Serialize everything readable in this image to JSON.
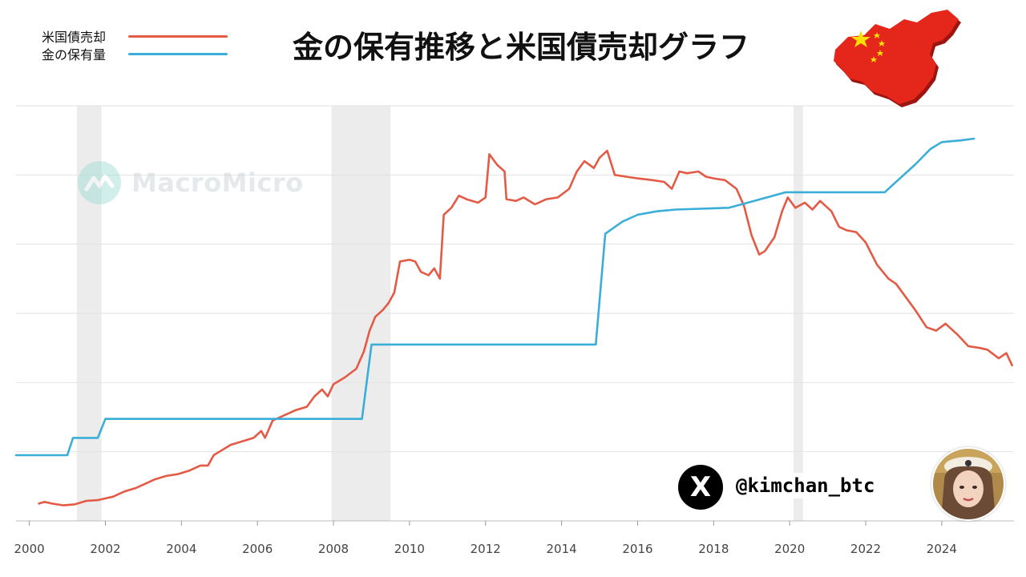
{
  "header": {
    "title": "金の保有推移と米国債売却グラフ",
    "legend": [
      {
        "label": "米国債売却",
        "color": "#e35a45"
      },
      {
        "label": "金の保有量",
        "color": "#3aaed8"
      }
    ]
  },
  "watermark": {
    "text": "MacroMicro",
    "icon": "macromicro-logo-icon"
  },
  "social": {
    "handle": "@kimchan_btc",
    "icon": "x-logo-icon"
  },
  "flag_map": {
    "icon": "china-flag-map-icon",
    "color": "#e5261b",
    "star_color": "#ffde00"
  },
  "chart_data": {
    "type": "line",
    "xlim": [
      1999.65,
      2025.9
    ],
    "ylim": [
      0,
      12
    ],
    "x_ticks": [
      2000,
      2002,
      2004,
      2006,
      2008,
      2010,
      2012,
      2014,
      2016,
      2018,
      2020,
      2022,
      2024
    ],
    "grid": true,
    "legend_position": "top-left",
    "recession_shading": [
      [
        2001.25,
        2001.9
      ],
      [
        2007.95,
        2009.5
      ],
      [
        2020.1,
        2020.35
      ]
    ],
    "series": [
      {
        "name": "米国債売却",
        "color": "#e35a45",
        "points": [
          [
            2000.25,
            0.5
          ],
          [
            2000.4,
            0.55
          ],
          [
            2000.6,
            0.5
          ],
          [
            2000.9,
            0.45
          ],
          [
            2001.2,
            0.48
          ],
          [
            2001.5,
            0.58
          ],
          [
            2001.8,
            0.6
          ],
          [
            2002.0,
            0.65
          ],
          [
            2002.2,
            0.7
          ],
          [
            2002.5,
            0.85
          ],
          [
            2002.8,
            0.95
          ],
          [
            2003.0,
            1.05
          ],
          [
            2003.3,
            1.2
          ],
          [
            2003.6,
            1.3
          ],
          [
            2003.9,
            1.35
          ],
          [
            2004.2,
            1.45
          ],
          [
            2004.5,
            1.6
          ],
          [
            2004.7,
            1.6
          ],
          [
            2004.85,
            1.9
          ],
          [
            2005.0,
            2.0
          ],
          [
            2005.3,
            2.2
          ],
          [
            2005.6,
            2.3
          ],
          [
            2005.9,
            2.4
          ],
          [
            2006.1,
            2.6
          ],
          [
            2006.2,
            2.4
          ],
          [
            2006.4,
            2.9
          ],
          [
            2006.6,
            3.0
          ],
          [
            2006.8,
            3.1
          ],
          [
            2007.0,
            3.2
          ],
          [
            2007.3,
            3.3
          ],
          [
            2007.5,
            3.6
          ],
          [
            2007.7,
            3.8
          ],
          [
            2007.85,
            3.6
          ],
          [
            2008.0,
            3.95
          ],
          [
            2008.3,
            4.15
          ],
          [
            2008.6,
            4.4
          ],
          [
            2008.8,
            4.9
          ],
          [
            2008.95,
            5.5
          ],
          [
            2009.1,
            5.9
          ],
          [
            2009.3,
            6.1
          ],
          [
            2009.45,
            6.3
          ],
          [
            2009.6,
            6.6
          ],
          [
            2009.75,
            7.5
          ],
          [
            2010.0,
            7.55
          ],
          [
            2010.15,
            7.5
          ],
          [
            2010.3,
            7.2
          ],
          [
            2010.5,
            7.1
          ],
          [
            2010.65,
            7.3
          ],
          [
            2010.8,
            7.0
          ],
          [
            2010.9,
            8.85
          ],
          [
            2011.1,
            9.05
          ],
          [
            2011.3,
            9.4
          ],
          [
            2011.5,
            9.3
          ],
          [
            2011.8,
            9.2
          ],
          [
            2012.0,
            9.35
          ],
          [
            2012.1,
            10.6
          ],
          [
            2012.3,
            10.3
          ],
          [
            2012.5,
            10.1
          ],
          [
            2012.55,
            9.3
          ],
          [
            2012.8,
            9.25
          ],
          [
            2013.0,
            9.35
          ],
          [
            2013.3,
            9.15
          ],
          [
            2013.6,
            9.3
          ],
          [
            2013.9,
            9.35
          ],
          [
            2014.2,
            9.6
          ],
          [
            2014.4,
            10.1
          ],
          [
            2014.6,
            10.4
          ],
          [
            2014.85,
            10.2
          ],
          [
            2015.0,
            10.5
          ],
          [
            2015.2,
            10.7
          ],
          [
            2015.4,
            10.0
          ],
          [
            2015.7,
            9.95
          ],
          [
            2016.0,
            9.9
          ],
          [
            2016.4,
            9.85
          ],
          [
            2016.7,
            9.8
          ],
          [
            2016.9,
            9.6
          ],
          [
            2017.1,
            10.1
          ],
          [
            2017.3,
            10.05
          ],
          [
            2017.6,
            10.1
          ],
          [
            2017.8,
            9.95
          ],
          [
            2018.0,
            9.9
          ],
          [
            2018.3,
            9.85
          ],
          [
            2018.6,
            9.6
          ],
          [
            2018.8,
            9.1
          ],
          [
            2019.0,
            8.25
          ],
          [
            2019.2,
            7.7
          ],
          [
            2019.35,
            7.8
          ],
          [
            2019.6,
            8.2
          ],
          [
            2019.8,
            8.95
          ],
          [
            2019.95,
            9.35
          ],
          [
            2020.15,
            9.05
          ],
          [
            2020.4,
            9.2
          ],
          [
            2020.6,
            9.0
          ],
          [
            2020.8,
            9.25
          ],
          [
            2021.1,
            8.95
          ],
          [
            2021.3,
            8.5
          ],
          [
            2021.5,
            8.4
          ],
          [
            2021.75,
            8.35
          ],
          [
            2022.0,
            8.05
          ],
          [
            2022.3,
            7.4
          ],
          [
            2022.6,
            7.0
          ],
          [
            2022.8,
            6.85
          ],
          [
            2023.0,
            6.55
          ],
          [
            2023.3,
            6.1
          ],
          [
            2023.6,
            5.6
          ],
          [
            2023.85,
            5.5
          ],
          [
            2024.1,
            5.7
          ],
          [
            2024.4,
            5.4
          ],
          [
            2024.7,
            5.05
          ],
          [
            2025.0,
            5.0
          ],
          [
            2025.2,
            4.95
          ],
          [
            2025.5,
            4.7
          ],
          [
            2025.7,
            4.85
          ],
          [
            2025.85,
            4.5
          ]
        ]
      },
      {
        "name": "金の保有量",
        "color": "#3aaed8",
        "points": [
          [
            1999.65,
            1.9
          ],
          [
            2001.0,
            1.9
          ],
          [
            2001.15,
            2.4
          ],
          [
            2001.8,
            2.4
          ],
          [
            2002.0,
            2.95
          ],
          [
            2008.75,
            2.95
          ],
          [
            2009.0,
            5.1
          ],
          [
            2014.9,
            5.1
          ],
          [
            2015.15,
            8.3
          ],
          [
            2015.6,
            8.65
          ],
          [
            2016.0,
            8.85
          ],
          [
            2016.5,
            8.95
          ],
          [
            2017.0,
            9.0
          ],
          [
            2018.4,
            9.05
          ],
          [
            2018.9,
            9.2
          ],
          [
            2019.4,
            9.35
          ],
          [
            2019.9,
            9.5
          ],
          [
            2022.5,
            9.5
          ],
          [
            2022.9,
            9.9
          ],
          [
            2023.3,
            10.3
          ],
          [
            2023.7,
            10.75
          ],
          [
            2024.0,
            10.95
          ],
          [
            2024.5,
            11.0
          ],
          [
            2024.85,
            11.05
          ]
        ]
      }
    ]
  }
}
